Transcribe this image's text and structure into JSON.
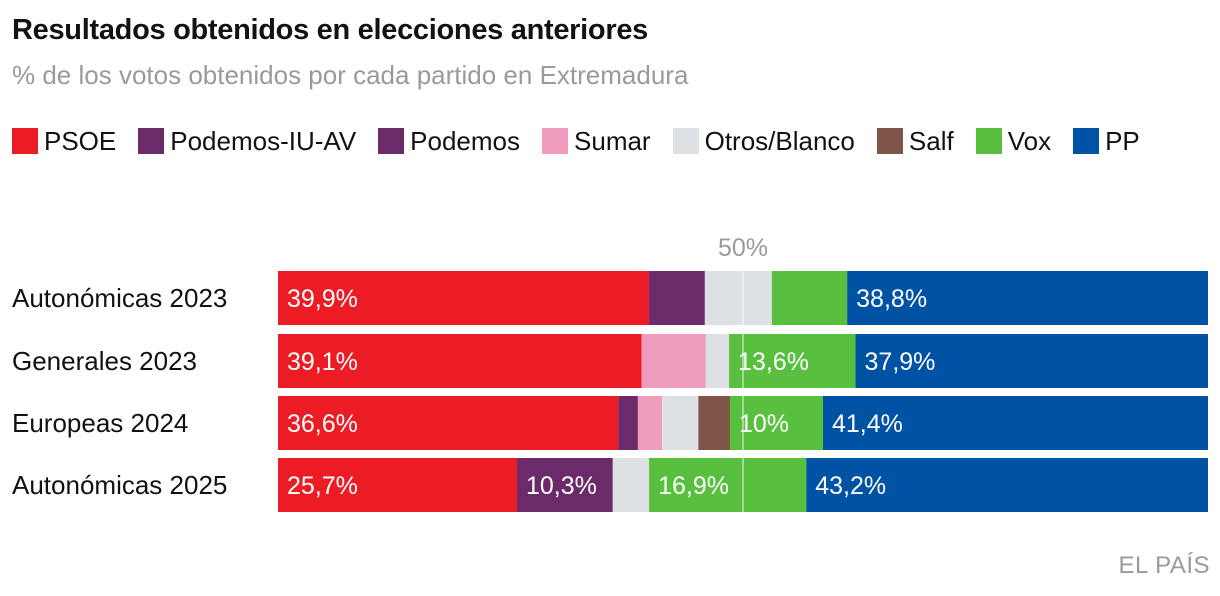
{
  "title": "Resultados obtenidos en elecciones anteriores",
  "subtitle": "% de los votos obtenidos por cada partido en Extremadura",
  "source": "EL PAÍS",
  "chart_data": {
    "type": "bar",
    "orientation": "horizontal",
    "stacked": true,
    "xlim": [
      0,
      100
    ],
    "reference_line": {
      "value": 50,
      "label": "50%"
    },
    "legend_position": "top",
    "categories": [
      "Autonómicas 2023",
      "Generales 2023",
      "Europeas 2024",
      "Autonómicas 2025"
    ],
    "series": [
      {
        "name": "PSOE",
        "color": "#EB1C24",
        "values": [
          39.9,
          39.1,
          36.6,
          25.7
        ],
        "labels": [
          "39,9%",
          "39,1%",
          "36,6%",
          "25,7%"
        ]
      },
      {
        "name": "Podemos-IU-AV",
        "color": "#6B2B6A",
        "values": [
          6.0,
          0,
          0,
          10.3
        ],
        "labels": [
          "",
          "",
          "",
          "10,3%"
        ]
      },
      {
        "name": "Podemos",
        "color": "#6B2B6A",
        "values": [
          0,
          0,
          2.1,
          0
        ],
        "labels": [
          "",
          "",
          "",
          ""
        ]
      },
      {
        "name": "Sumar",
        "color": "#F09CBE",
        "values": [
          0,
          6.9,
          2.6,
          0
        ],
        "labels": [
          "",
          "",
          "",
          ""
        ]
      },
      {
        "name": "Otros/Blanco",
        "color": "#DDE1E4",
        "values": [
          7.2,
          2.5,
          3.9,
          3.9
        ],
        "labels": [
          "",
          "",
          "",
          ""
        ]
      },
      {
        "name": "Salf",
        "color": "#7F5547",
        "values": [
          0,
          0,
          3.4,
          0
        ],
        "labels": [
          "",
          "",
          "",
          ""
        ]
      },
      {
        "name": "Vox",
        "color": "#58C03E",
        "values": [
          8.1,
          13.6,
          10.0,
          16.9
        ],
        "labels": [
          "",
          "13,6%",
          "10%",
          "16,9%"
        ]
      },
      {
        "name": "PP",
        "color": "#0052A4",
        "values": [
          38.8,
          37.9,
          41.4,
          43.2
        ],
        "labels": [
          "38,8%",
          "37,9%",
          "41,4%",
          "43,2%"
        ]
      }
    ]
  }
}
